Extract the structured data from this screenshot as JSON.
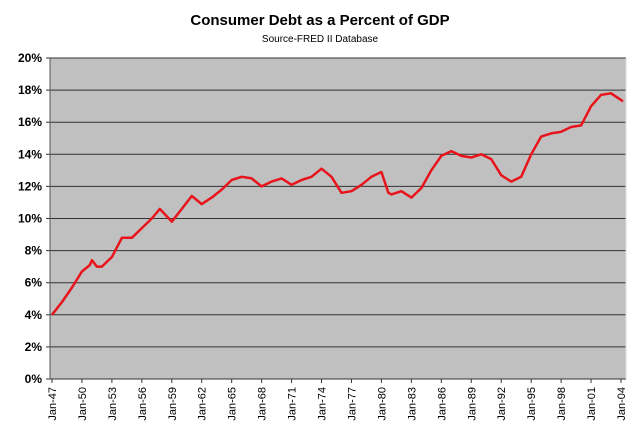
{
  "chart_data": {
    "type": "line",
    "title": "Consumer Debt as a Percent of GDP",
    "subtitle": "Source-FRED II Database",
    "xlabel": "",
    "ylabel": "",
    "ylim": [
      0,
      20
    ],
    "xlim": [
      1947,
      2004
    ],
    "grid": true,
    "legend": "none",
    "y_ticks": [
      "0%",
      "2%",
      "4%",
      "6%",
      "8%",
      "10%",
      "12%",
      "14%",
      "16%",
      "18%",
      "20%"
    ],
    "x_ticks": [
      "Jan-47",
      "Jan-50",
      "Jan-53",
      "Jan-56",
      "Jan-59",
      "Jan-62",
      "Jan-65",
      "Jan-68",
      "Jan-71",
      "Jan-74",
      "Jan-77",
      "Jan-80",
      "Jan-83",
      "Jan-86",
      "Jan-89",
      "Jan-92",
      "Jan-95",
      "Jan-98",
      "Jan-01",
      "Jan-04"
    ],
    "series": [
      {
        "name": "Consumer Debt % of GDP",
        "color": "#e8141c",
        "x": [
          1947,
          1948,
          1949,
          1950,
          1950.8,
          1951,
          1951.5,
          1952,
          1953,
          1954,
          1955,
          1956,
          1957,
          1957.8,
          1959,
          1960,
          1961,
          1962,
          1963,
          1964,
          1965,
          1966,
          1967,
          1968,
          1969,
          1970,
          1971,
          1972,
          1973,
          1974,
          1975,
          1976,
          1977,
          1978,
          1979,
          1980,
          1980.7,
          1981,
          1982,
          1983,
          1984,
          1985,
          1986,
          1987,
          1988,
          1989,
          1990,
          1991,
          1992,
          1993,
          1994,
          1995,
          1996,
          1997,
          1998,
          1999,
          2000,
          2001,
          2002,
          2003,
          2004.2
        ],
        "values": [
          4.0,
          4.8,
          5.7,
          6.7,
          7.1,
          7.4,
          7.0,
          7.0,
          7.6,
          8.8,
          8.8,
          9.4,
          10.0,
          10.6,
          9.8,
          10.6,
          11.4,
          10.9,
          11.3,
          11.8,
          12.4,
          12.6,
          12.5,
          12.0,
          12.3,
          12.5,
          12.1,
          12.4,
          12.6,
          13.1,
          12.6,
          11.6,
          11.7,
          12.1,
          12.6,
          12.9,
          11.6,
          11.5,
          11.7,
          11.3,
          11.9,
          13.0,
          13.9,
          14.2,
          13.9,
          13.8,
          14.0,
          13.7,
          12.7,
          12.3,
          12.6,
          14.0,
          15.1,
          15.3,
          15.4,
          15.7,
          15.8,
          17.0,
          17.7,
          17.8,
          17.3
        ]
      }
    ]
  }
}
